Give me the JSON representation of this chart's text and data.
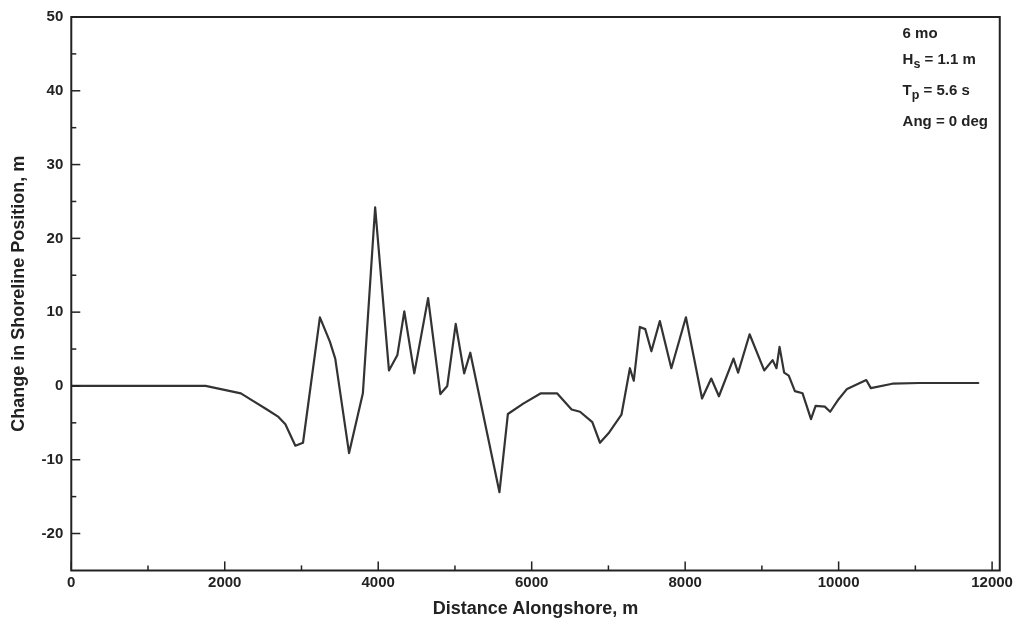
{
  "chart_data": {
    "type": "line",
    "xlabel": "Distance Alongshore, m",
    "ylabel": "Change in Shoreline Position, m",
    "annotations": [
      "6 mo",
      "H$_{s}$ = 1.1 m",
      "T$_{p}$ = 5.6 s",
      "Ang = 0 deg"
    ],
    "xlim": [
      0,
      12100
    ],
    "ylim": [
      -25,
      50
    ],
    "xticks": [
      0,
      {
        "value": 1000,
        "label": null
      },
      2000,
      {
        "value": 3000,
        "label": null
      },
      4000,
      {
        "value": 5000,
        "label": null
      },
      6000,
      {
        "value": 7000,
        "label": null
      },
      8000,
      {
        "value": 9000,
        "label": null
      },
      10000,
      {
        "value": 11000,
        "label": null
      },
      12000
    ],
    "yticks": [
      -20,
      {
        "value": -15,
        "label": null
      },
      -10,
      {
        "value": -5,
        "label": null
      },
      0,
      {
        "value": 5,
        "label": null
      },
      10,
      {
        "value": 15,
        "label": null
      },
      20,
      {
        "value": 25,
        "label": null
      },
      30,
      {
        "value": 35,
        "label": null
      },
      40,
      {
        "value": 45,
        "label": null
      },
      50
    ],
    "grid": false,
    "legend": false,
    "marker": "none",
    "line_style": "solid",
    "series": [
      {
        "color": "#333333",
        "x": [
          0,
          1750,
          2210,
          2550,
          2700,
          2790,
          2920,
          3020,
          3240,
          3370,
          3440,
          3620,
          3800,
          3960,
          4140,
          4250,
          4340,
          4470,
          4650,
          4810,
          4900,
          5010,
          5120,
          5200,
          5580,
          5690,
          5890,
          6120,
          6330,
          6520,
          6630,
          6790,
          6890,
          7010,
          7170,
          7280,
          7330,
          7410,
          7480,
          7560,
          7670,
          7820,
          8010,
          8220,
          8340,
          8440,
          8630,
          8690,
          8840,
          9030,
          9140,
          9190,
          9230,
          9290,
          9350,
          9430,
          9530,
          9640,
          9700,
          9820,
          9890,
          10000,
          10110,
          10360,
          10420,
          10700,
          11050,
          11820
        ],
        "values": [
          0,
          0,
          -1.0,
          -3.2,
          -4.2,
          -5.2,
          -8.1,
          -7.7,
          9.3,
          6.0,
          3.7,
          -9.1,
          -1.0,
          24.2,
          2.1,
          4.2,
          10.1,
          1.7,
          11.9,
          -1.1,
          0,
          8.4,
          1.7,
          4.5,
          -14.4,
          -3.8,
          -2.4,
          -1.0,
          -1.0,
          -3.2,
          -3.5,
          -4.9,
          -7.7,
          -6.3,
          -3.9,
          2.4,
          0.7,
          8.0,
          7.7,
          4.7,
          8.8,
          2.4,
          9.3,
          -1.7,
          1.0,
          -1.4,
          3.7,
          1.8,
          7.0,
          2.1,
          3.5,
          2.4,
          5.3,
          1.8,
          1.4,
          -0.7,
          -1.0,
          -4.5,
          -2.7,
          -2.8,
          -3.5,
          -1.8,
          -0.4,
          0.8,
          -0.3,
          0.3,
          0.4,
          0.4
        ]
      }
    ]
  }
}
